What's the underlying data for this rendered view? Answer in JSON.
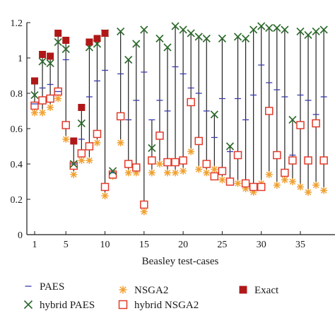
{
  "chart_data": {
    "type": "scatter",
    "title": "",
    "xlabel": "Beasley test-cases",
    "ylabel": "",
    "xlim": [
      0,
      38
    ],
    "ylim": [
      0,
      1.2
    ],
    "xticks": [
      1,
      5,
      10,
      15,
      20,
      25,
      30,
      35
    ],
    "yticks": [
      0,
      0.2,
      0.4,
      0.6,
      0.8,
      1,
      1.2
    ],
    "ytick_labels": [
      "0",
      "0.2",
      "0.4",
      "0.6",
      "0.8",
      "1",
      "1.2"
    ],
    "x": [
      1,
      2,
      3,
      4,
      5,
      6,
      7,
      8,
      9,
      10,
      11,
      12,
      13,
      14,
      15,
      16,
      17,
      18,
      19,
      20,
      21,
      22,
      23,
      24,
      25,
      26,
      27,
      28,
      29,
      30,
      31,
      32,
      33,
      34,
      35,
      36,
      37,
      38
    ],
    "range_lines": true,
    "legend": {
      "position": "bottom",
      "entries": [
        {
          "series": "paes",
          "label": "PAES"
        },
        {
          "series": "nsga2",
          "label": "NSGA2"
        },
        {
          "series": "exact",
          "label": "Exact"
        },
        {
          "series": "hybrid_paes",
          "label": "hybrid PAES"
        },
        {
          "series": "hybrid_nsga2",
          "label": "hybrid NSGA2"
        }
      ]
    },
    "series": [
      {
        "key": "paes",
        "name": "PAES",
        "marker": "plus",
        "color": "#3b3bb0",
        "values": [
          0.74,
          0.83,
          0.85,
          0.81,
          0.99,
          0.4,
          0.54,
          0.78,
          0.87,
          0.93,
          0.35,
          0.91,
          0.65,
          0.76,
          0.92,
          0.65,
          0.76,
          0.7,
          0.95,
          0.91,
          0.83,
          0.8,
          0.7,
          0.55,
          0.77,
          0.47,
          0.77,
          0.65,
          0.79,
          0.96,
          0.86,
          0.82,
          0.78,
          0.45,
          0.79,
          0.76,
          0.68,
          0.78
        ]
      },
      {
        "key": "hybrid_paes",
        "name": "hybrid PAES",
        "marker": "x",
        "color": "#2a6a2a",
        "values": [
          0.79,
          0.98,
          0.97,
          1.09,
          1.05,
          0.4,
          0.63,
          1.06,
          1.08,
          1.14,
          0.36,
          1.15,
          0.99,
          1.08,
          1.16,
          0.49,
          1.11,
          1.06,
          1.18,
          1.16,
          1.14,
          1.12,
          1.11,
          0.68,
          1.11,
          0.5,
          1.12,
          1.11,
          1.16,
          1.18,
          1.17,
          1.17,
          1.16,
          0.65,
          1.15,
          1.13,
          1.15,
          1.16
        ]
      },
      {
        "key": "nsga2",
        "name": "NSGA2",
        "marker": "asterisk",
        "color": "#f0a030",
        "values": [
          0.69,
          0.69,
          0.72,
          0.77,
          0.54,
          0.34,
          0.42,
          0.42,
          0.52,
          0.22,
          0.33,
          0.52,
          0.35,
          0.35,
          0.13,
          0.35,
          0.4,
          0.35,
          0.35,
          0.36,
          0.47,
          0.37,
          0.35,
          0.37,
          0.31,
          0.3,
          0.29,
          0.26,
          0.24,
          0.29,
          0.34,
          0.28,
          0.31,
          0.3,
          0.27,
          0.24,
          0.28,
          0.25
        ]
      },
      {
        "key": "hybrid_nsga2",
        "name": "hybrid NSGA2",
        "marker": "square",
        "color": "#e23a2a",
        "values": [
          0.73,
          0.76,
          0.77,
          0.81,
          0.62,
          0.39,
          0.46,
          0.5,
          0.57,
          0.27,
          0.34,
          0.67,
          0.4,
          0.38,
          0.17,
          0.42,
          0.56,
          0.41,
          0.41,
          0.42,
          0.75,
          0.53,
          0.4,
          0.33,
          0.36,
          0.3,
          0.45,
          0.29,
          0.27,
          0.27,
          0.7,
          0.45,
          0.35,
          0.42,
          0.62,
          0.42,
          0.63,
          0.42
        ]
      },
      {
        "key": "exact",
        "name": "Exact",
        "marker": "filled-square",
        "color": "#b01818",
        "x": [
          1,
          2,
          3,
          4,
          5,
          6,
          7,
          8,
          9,
          10
        ],
        "values": [
          0.87,
          1.02,
          1.01,
          1.14,
          1.1,
          0.53,
          0.72,
          1.09,
          1.11,
          1.14
        ]
      }
    ]
  }
}
